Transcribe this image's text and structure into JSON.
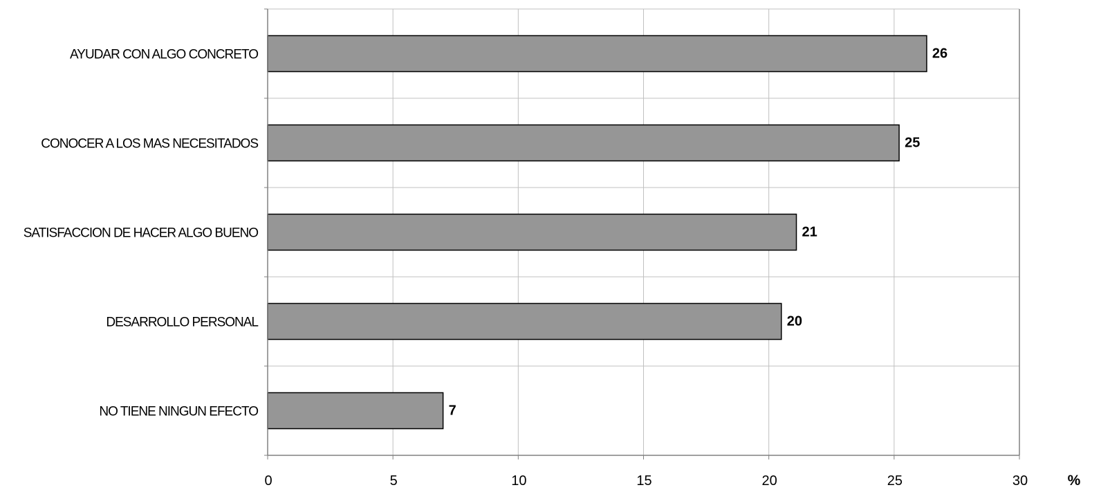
{
  "chart_data": {
    "type": "bar",
    "orientation": "horizontal",
    "categories": [
      "AYUDAR CON ALGO CONCRETO",
      "CONOCER A LOS MAS NECESITADOS",
      "SATISFACCION DE HACER ALGO BUENO",
      "DESARROLLO PERSONAL",
      "NO TIENE NINGUN EFECTO"
    ],
    "values": [
      26.3,
      25.2,
      21.1,
      20.5,
      7
    ],
    "data_labels": [
      "26",
      "25",
      "21",
      "20",
      "7"
    ],
    "x_ticks": [
      "0",
      "5",
      "10",
      "15",
      "20",
      "25",
      "30"
    ],
    "xlim": [
      0,
      30
    ],
    "x_unit": "%",
    "grid": true,
    "bar_color": "#969696",
    "bar_stroke": "#000000",
    "grid_color": "#c0c0c0"
  }
}
